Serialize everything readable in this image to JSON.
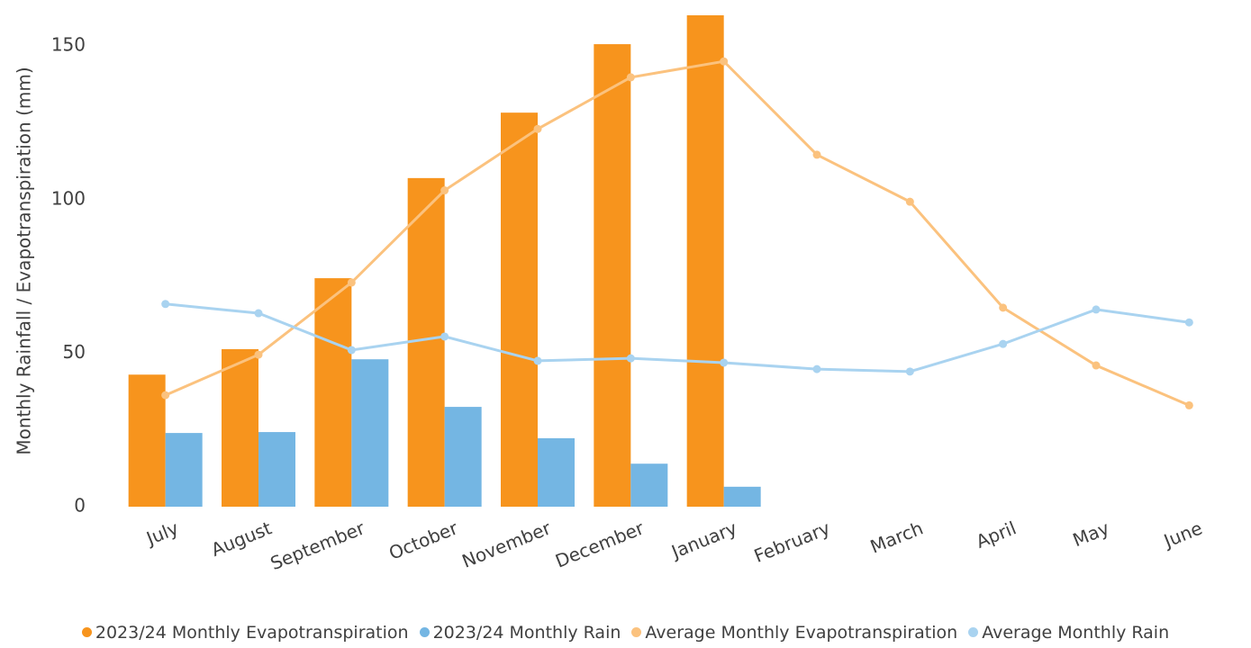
{
  "chart_data": {
    "type": "bar",
    "y_label": "Monthly Rainfall / Evapotranspiration (mm)",
    "categories": [
      "July",
      "August",
      "September",
      "October",
      "November",
      "December",
      "January",
      "February",
      "March",
      "April",
      "May",
      "June"
    ],
    "series": [
      {
        "name": "2023/24 Monthly Evapotranspiration",
        "type": "bar",
        "color": "#f7941d",
        "values": [
          43,
          51.3,
          74.4,
          107,
          128.3,
          150.6,
          160,
          null,
          null,
          null,
          null,
          null
        ]
      },
      {
        "name": "2023/24 Monthly Rain",
        "type": "bar",
        "color": "#74b6e3",
        "values": [
          24,
          24.3,
          48,
          32.5,
          22.3,
          14,
          6.5,
          null,
          null,
          null,
          null,
          null
        ]
      },
      {
        "name": "Average Monthly Evapotranspiration",
        "type": "line",
        "color": "#fbc27e",
        "values": [
          36.3,
          49.5,
          73,
          103,
          123,
          139.8,
          145,
          114.6,
          99.3,
          64.8,
          46,
          33
        ]
      },
      {
        "name": "Average Monthly Rain",
        "type": "line",
        "color": "#a9d3f0",
        "values": [
          66,
          63,
          51,
          55.4,
          47.5,
          48.3,
          46.9,
          44.8,
          44,
          53,
          64.2,
          60
        ]
      }
    ],
    "ylim": [
      0,
      160
    ],
    "yticks": [
      0,
      50,
      100,
      150
    ],
    "grid": false,
    "legend": "bottom"
  }
}
